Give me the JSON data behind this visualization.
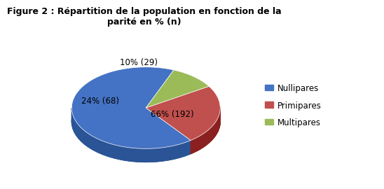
{
  "title": "Figure 2 : Répartition de la population en fonction de la\nparité en % (n)",
  "slices": [
    192,
    68,
    29
  ],
  "labels": [
    "66% (192)",
    "24% (68)",
    "10% (29)"
  ],
  "colors": [
    "#4472C4",
    "#C0504D",
    "#9BBB59"
  ],
  "shadow_colors": [
    "#2A5496",
    "#8B2020",
    "#6A8030"
  ],
  "legend_labels": [
    "Nullipares",
    "Primipares",
    "Multipares"
  ],
  "title_fontsize": 9,
  "label_fontsize": 8.5,
  "legend_fontsize": 8.5,
  "startangle": 68,
  "background_color": "#ffffff"
}
